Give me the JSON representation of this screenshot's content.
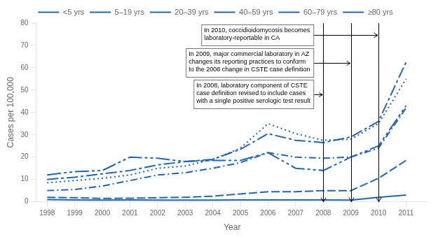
{
  "chart_data": {
    "type": "line",
    "xlabel": "Year",
    "ylabel": "Cases per 100,000",
    "color": "#2166ac",
    "x": [
      1998,
      1999,
      2000,
      2001,
      2002,
      2003,
      2004,
      2005,
      2006,
      2007,
      2008,
      2009,
      2010,
      2011
    ],
    "xlim": [
      1997.6,
      2011.8
    ],
    "xticks": [
      1998,
      1999,
      2000,
      2001,
      2002,
      2003,
      2004,
      2005,
      2006,
      2007,
      2008,
      2009,
      2010,
      2011
    ],
    "ylim": [
      0,
      80
    ],
    "yticks": [
      0,
      10,
      20,
      30,
      40,
      50,
      60,
      70,
      80
    ],
    "grid": false,
    "legend": "top",
    "series": [
      {
        "name": "<5 yrs",
        "line_style": "solid",
        "values": [
          1.0,
          0.8,
          0.7,
          0.8,
          0.7,
          0.7,
          0.7,
          0.8,
          0.8,
          0.8,
          0.8,
          0.7,
          2.0,
          3.0
        ]
      },
      {
        "name": "5–19 yrs",
        "line_style": "dashed",
        "values": [
          2.0,
          1.8,
          1.5,
          1.6,
          1.8,
          2.0,
          2.5,
          3.5,
          4.5,
          4.5,
          5.0,
          5.0,
          10.5,
          18.5
        ]
      },
      {
        "name": "20–39 yrs",
        "line_style": "dashdot",
        "values": [
          5.0,
          5.5,
          7.0,
          9.5,
          12.0,
          13.0,
          15.0,
          17.5,
          22.0,
          20.0,
          19.5,
          20.0,
          24.0,
          42.0
        ]
      },
      {
        "name": "40–59 yrs",
        "line_style": "dotted",
        "values": [
          8.5,
          9.5,
          10.5,
          12.0,
          15.0,
          16.0,
          19.0,
          24.0,
          35.0,
          30.5,
          27.5,
          28.0,
          35.0,
          55.0
        ]
      },
      {
        "name": "60–79 yrs",
        "line_style": "longdashdot",
        "values": [
          10.0,
          11.0,
          12.5,
          14.0,
          16.5,
          18.0,
          19.0,
          23.5,
          30.5,
          27.5,
          26.5,
          29.0,
          36.0,
          62.5
        ]
      },
      {
        "name": "≥80 yrs",
        "line_style": "longdashdotdot",
        "values": [
          12.0,
          13.5,
          14.0,
          20.0,
          19.5,
          18.0,
          18.5,
          18.5,
          22.0,
          15.0,
          14.0,
          20.0,
          25.0,
          43.0
        ]
      }
    ],
    "annotations": [
      {
        "text": "In 2008, laboratory component of CSTE\ncase definition revised to include cases\nwith a single positive serologic test result",
        "x": 2008
      },
      {
        "text": "In 2009, major commercial laboratory in AZ\nchanges its reporting practices to conform\nto the 2008 change in CSTE case definition",
        "x": 2009
      },
      {
        "text": "In 2010, coccidioidomycosis becomes\nlaboratory-reportable in CA",
        "x": 2010
      }
    ]
  }
}
